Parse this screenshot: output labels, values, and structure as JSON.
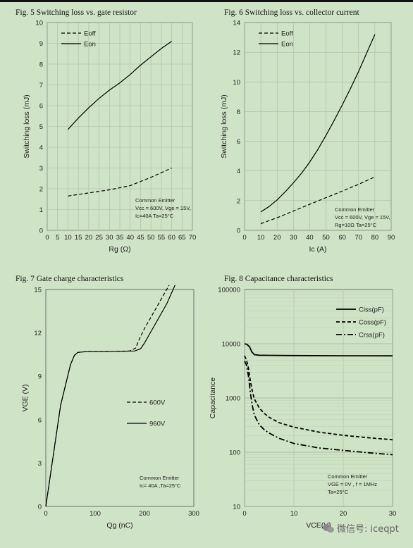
{
  "chart_data": [
    {
      "type": "line",
      "title": "Fig. 5  Switching loss vs. gate resistor",
      "xlabel": "Rg (Ω)",
      "ylabel": "Switching loss (mJ)",
      "xlim": [
        0,
        70
      ],
      "ylim": [
        0,
        10
      ],
      "xticks": [
        0,
        5,
        10,
        15,
        20,
        25,
        30,
        35,
        40,
        45,
        50,
        55,
        60,
        65,
        70
      ],
      "yticks": [
        0,
        1,
        2,
        3,
        4,
        5,
        6,
        7,
        8,
        9,
        10
      ],
      "grid": true,
      "legend": "top-left",
      "annotation": [
        "Common Emitter",
        "Vcc = 600V, Vge = 15V,",
        "Ic=40A    Ta=25°C"
      ],
      "series": [
        {
          "name": "Eoff",
          "style": "dashed",
          "x": [
            10,
            20,
            30,
            40,
            50,
            60
          ],
          "y": [
            1.65,
            1.8,
            1.95,
            2.15,
            2.55,
            3.0
          ]
        },
        {
          "name": "Eon",
          "style": "solid",
          "x": [
            10,
            15,
            20,
            25,
            30,
            35,
            40,
            45,
            50,
            55,
            60
          ],
          "y": [
            4.85,
            5.4,
            5.9,
            6.35,
            6.75,
            7.1,
            7.5,
            7.95,
            8.35,
            8.75,
            9.1
          ]
        }
      ]
    },
    {
      "type": "line",
      "title": "Fig. 6  Switching loss vs. collector current",
      "xlabel": "Ic (A)",
      "ylabel": "Switching loss (mJ)",
      "xlim": [
        0,
        90
      ],
      "ylim": [
        0,
        14
      ],
      "xticks": [
        0,
        10,
        20,
        30,
        40,
        50,
        60,
        70,
        80,
        90
      ],
      "yticks": [
        0,
        2,
        4,
        6,
        8,
        10,
        12,
        14
      ],
      "grid": true,
      "legend": "top-left",
      "annotation": [
        "Common Emitter",
        "Vcc = 600V, Vge = 15V,",
        "Rg=10Ω    Ta=25°C"
      ],
      "series": [
        {
          "name": "Eoff",
          "style": "dashed",
          "x": [
            10,
            20,
            30,
            40,
            50,
            60,
            70,
            80
          ],
          "y": [
            0.45,
            0.85,
            1.3,
            1.75,
            2.2,
            2.65,
            3.1,
            3.6
          ]
        },
        {
          "name": "Eon",
          "style": "solid",
          "x": [
            10,
            15,
            20,
            25,
            30,
            35,
            40,
            45,
            50,
            55,
            60,
            65,
            70,
            75,
            80
          ],
          "y": [
            1.25,
            1.6,
            2.05,
            2.6,
            3.2,
            3.85,
            4.6,
            5.45,
            6.4,
            7.4,
            8.45,
            9.55,
            10.7,
            11.95,
            13.2
          ]
        }
      ]
    },
    {
      "type": "line",
      "title": "Fig. 7  Gate charge characteristics",
      "xlabel": "Qg (nC)",
      "ylabel": "VGE (V)",
      "xlim": [
        0,
        300
      ],
      "ylim": [
        0,
        15
      ],
      "xticks": [
        0,
        100,
        200,
        300
      ],
      "yticks": [
        0,
        3,
        6,
        9,
        12,
        15
      ],
      "grid": false,
      "legend": "center-right",
      "annotation": [
        "Common Emitter",
        "Ic= 40A ,Ta=25°C"
      ],
      "series": [
        {
          "name": "600V",
          "style": "dashed",
          "x": [
            0,
            30,
            50,
            58,
            65,
            80,
            120,
            170,
            182,
            190,
            200,
            215,
            230,
            245,
            250
          ],
          "y": [
            0,
            7,
            9.8,
            10.45,
            10.65,
            10.7,
            10.7,
            10.75,
            10.95,
            11.6,
            12.3,
            13.2,
            14.1,
            15.0,
            15.3
          ]
        },
        {
          "name": "960V",
          "style": "solid",
          "x": [
            0,
            30,
            50,
            58,
            65,
            80,
            120,
            180,
            192,
            200,
            215,
            230,
            245,
            258,
            262
          ],
          "y": [
            0,
            7,
            9.8,
            10.45,
            10.65,
            10.7,
            10.7,
            10.75,
            10.9,
            11.3,
            12.2,
            13.1,
            14.0,
            15.0,
            15.3
          ]
        }
      ]
    },
    {
      "type": "line",
      "title": "Fig. 8  Capacitance characteristics",
      "xlabel": "VCE(V)",
      "ylabel": "Capacitance",
      "xscale": "linear",
      "yscale": "log",
      "xlim": [
        0,
        30
      ],
      "ylim": [
        10,
        100000
      ],
      "xticks": [
        0,
        10,
        20,
        30
      ],
      "yticks": [
        10,
        100,
        1000,
        10000,
        100000
      ],
      "grid": true,
      "legend": "top-right",
      "annotation": [
        "Common Emitter",
        "VGE = 0V , f = 1MHz",
        "Ta=25°C"
      ],
      "series": [
        {
          "name": "Ciss(pF)",
          "style": "solid",
          "x": [
            0,
            0.5,
            1,
            1.5,
            2,
            3,
            5,
            10,
            20,
            30
          ],
          "y": [
            10000,
            9700,
            8800,
            7000,
            6300,
            6150,
            6100,
            6050,
            6000,
            5980
          ]
        },
        {
          "name": "Coss(pF)",
          "style": "dashed",
          "x": [
            0,
            0.4,
            0.8,
            1.2,
            1.6,
            2,
            3,
            4,
            5,
            7,
            10,
            15,
            20,
            25,
            30
          ],
          "y": [
            6000,
            5000,
            3500,
            2000,
            1300,
            950,
            650,
            520,
            440,
            350,
            290,
            235,
            205,
            185,
            170
          ]
        },
        {
          "name": "Crss(pF)",
          "style": "dashdot",
          "x": [
            0,
            0.4,
            0.8,
            1.2,
            1.6,
            2,
            3,
            4,
            5,
            7,
            10,
            15,
            20,
            25,
            30
          ],
          "y": [
            4800,
            4000,
            2500,
            1200,
            700,
            480,
            320,
            260,
            225,
            180,
            145,
            120,
            108,
            98,
            90
          ]
        }
      ]
    }
  ],
  "watermark": "微信号: iceqpt"
}
